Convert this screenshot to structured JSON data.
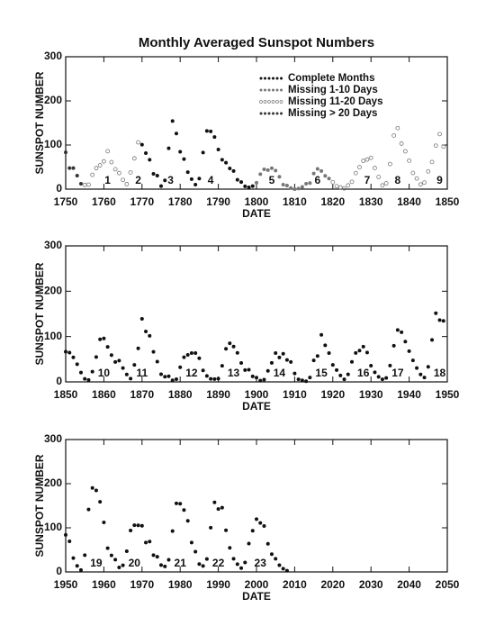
{
  "chart_data": [
    {
      "type": "scatter",
      "title": "Monthly Averaged Sunspot Numbers",
      "xlabel": "DATE",
      "ylabel": "SUNSPOT NUMBER",
      "xlim": [
        1750,
        1850
      ],
      "ylim": [
        0,
        300
      ],
      "xticks": [
        1750,
        1760,
        1770,
        1780,
        1790,
        1800,
        1810,
        1820,
        1830,
        1840,
        1850
      ],
      "yticks": [
        0,
        100,
        200,
        300
      ],
      "legend": "upper right",
      "series": [
        {
          "name": "Complete Months",
          "color": "#111111",
          "marker": "filled",
          "x": [
            1770,
            1771,
            1772,
            1773,
            1774,
            1775,
            1776,
            1777,
            1778,
            1779,
            1780,
            1781,
            1782,
            1783,
            1784,
            1785,
            1786,
            1787,
            1788,
            1789,
            1790,
            1791,
            1792,
            1793,
            1794,
            1795,
            1796,
            1797,
            1798,
            1799
          ],
          "values": [
            100.8,
            81.6,
            66.5,
            34.8,
            30.6,
            7.0,
            19.8,
            92.5,
            154.4,
            125.9,
            84.8,
            68.1,
            38.5,
            22.8,
            10.2,
            24.1,
            82.9,
            132.0,
            130.9,
            118.1,
            89.9,
            66.6,
            60.0,
            46.9,
            41.0,
            21.3,
            16.0,
            6.4,
            4.1,
            6.8
          ]
        },
        {
          "name": "Missing 1-10 Days",
          "color": "#777777",
          "marker": "filled",
          "x": [
            1800,
            1801,
            1802,
            1803,
            1804,
            1805,
            1806,
            1807,
            1808,
            1809,
            1810,
            1811,
            1812,
            1813,
            1814,
            1815,
            1816,
            1817,
            1818,
            1819
          ],
          "values": [
            14.5,
            34.0,
            45.0,
            43.1,
            47.5,
            42.2,
            28.1,
            10.1,
            8.1,
            2.5,
            0.0,
            1.4,
            5.0,
            12.2,
            13.9,
            35.4,
            45.8,
            41.1,
            30.1,
            23.9
          ]
        },
        {
          "name": "Missing 11-20 Days",
          "color": "#777777",
          "marker": "open",
          "x": [
            1755,
            1756,
            1757,
            1758,
            1759,
            1760,
            1761,
            1762,
            1763,
            1764,
            1765,
            1766,
            1767,
            1768,
            1769,
            1820,
            1821,
            1822,
            1823,
            1824,
            1825,
            1826,
            1827,
            1828,
            1829,
            1830,
            1831,
            1832,
            1833,
            1834,
            1835,
            1836,
            1837,
            1838,
            1839,
            1840,
            1841,
            1842,
            1843,
            1844,
            1845,
            1846,
            1847,
            1848,
            1849
          ],
          "values": [
            9.6,
            10.2,
            32.4,
            47.6,
            54.0,
            62.9,
            85.9,
            61.2,
            45.1,
            36.4,
            20.9,
            11.4,
            37.8,
            69.8,
            106.1,
            15.6,
            6.6,
            4.0,
            1.8,
            8.5,
            16.6,
            36.3,
            49.6,
            64.2,
            67.0,
            70.9,
            47.8,
            27.5,
            8.5,
            13.2,
            56.9,
            121.5,
            138.3,
            103.2,
            85.7,
            64.6,
            36.7,
            24.2,
            10.7,
            15.0,
            40.1,
            61.5,
            98.5,
            124.7,
            96.3
          ]
        },
        {
          "name": "Missing > 20 Days",
          "color": "#333333",
          "marker": "filled",
          "x": [
            1750,
            1751,
            1752,
            1753,
            1754
          ],
          "values": [
            83.4,
            47.7,
            47.8,
            30.7,
            12.2
          ]
        }
      ],
      "annotations": [
        {
          "text": "1",
          "x": 1761
        },
        {
          "text": "2",
          "x": 1769
        },
        {
          "text": "3",
          "x": 1777.5
        },
        {
          "text": "4",
          "x": 1788
        },
        {
          "text": "5",
          "x": 1804
        },
        {
          "text": "6",
          "x": 1816
        },
        {
          "text": "7",
          "x": 1829
        },
        {
          "text": "8",
          "x": 1837
        },
        {
          "text": "9",
          "x": 1848
        }
      ]
    },
    {
      "type": "scatter",
      "xlabel": "DATE",
      "ylabel": "SUNSPOT NUMBER",
      "xlim": [
        1850,
        1950
      ],
      "ylim": [
        0,
        300
      ],
      "xticks": [
        1850,
        1860,
        1870,
        1880,
        1890,
        1900,
        1910,
        1920,
        1930,
        1940,
        1950
      ],
      "yticks": [
        0,
        100,
        200,
        300
      ],
      "series": [
        {
          "color": "#111111",
          "marker": "filled",
          "x": [
            1850,
            1851,
            1852,
            1853,
            1854,
            1855,
            1856,
            1857,
            1858,
            1859,
            1860,
            1861,
            1862,
            1863,
            1864,
            1865,
            1866,
            1867,
            1868,
            1869,
            1870,
            1871,
            1872,
            1873,
            1874,
            1875,
            1876,
            1877,
            1878,
            1879,
            1880,
            1881,
            1882,
            1883,
            1884,
            1885,
            1886,
            1887,
            1888,
            1889,
            1890,
            1891,
            1892,
            1893,
            1894,
            1895,
            1896,
            1897,
            1898,
            1899,
            1900,
            1901,
            1902,
            1903,
            1904,
            1905,
            1906,
            1907,
            1908,
            1909,
            1910,
            1911,
            1912,
            1913,
            1914,
            1915,
            1916,
            1917,
            1918,
            1919,
            1920,
            1921,
            1922,
            1923,
            1924,
            1925,
            1926,
            1927,
            1928,
            1929,
            1930,
            1931,
            1932,
            1933,
            1934,
            1935,
            1936,
            1937,
            1938,
            1939,
            1940,
            1941,
            1942,
            1943,
            1944,
            1945,
            1946,
            1947,
            1948,
            1949
          ],
          "values": [
            66.6,
            64.5,
            54.1,
            39.0,
            20.6,
            6.7,
            4.3,
            22.7,
            54.8,
            93.8,
            95.8,
            77.2,
            59.1,
            44.0,
            47.0,
            30.5,
            16.3,
            7.3,
            37.6,
            74.0,
            139.0,
            111.2,
            101.6,
            66.2,
            44.7,
            17.0,
            11.3,
            12.4,
            3.4,
            6.0,
            32.3,
            54.3,
            59.7,
            63.7,
            63.5,
            52.2,
            25.4,
            13.1,
            6.8,
            6.3,
            7.1,
            35.6,
            73.0,
            85.1,
            78.0,
            64.0,
            41.8,
            26.2,
            26.7,
            12.1,
            9.5,
            2.7,
            5.0,
            24.4,
            42.0,
            63.5,
            53.8,
            62.0,
            48.5,
            43.9,
            18.6,
            5.7,
            3.6,
            1.4,
            9.6,
            47.4,
            57.1,
            103.9,
            80.6,
            63.6,
            37.6,
            26.1,
            14.2,
            5.8,
            16.7,
            44.3,
            63.9,
            69.0,
            77.8,
            64.9,
            35.7,
            21.2,
            11.1,
            5.7,
            8.7,
            36.1,
            79.7,
            114.4,
            109.6,
            88.8,
            67.8,
            47.5,
            30.6,
            16.3,
            9.6,
            33.2,
            92.6,
            151.6,
            136.3,
            134.7
          ]
        }
      ],
      "annotations": [
        {
          "text": "10",
          "x": 1860
        },
        {
          "text": "11",
          "x": 1870
        },
        {
          "text": "12",
          "x": 1883
        },
        {
          "text": "13",
          "x": 1894
        },
        {
          "text": "14",
          "x": 1906
        },
        {
          "text": "15",
          "x": 1917
        },
        {
          "text": "16",
          "x": 1928
        },
        {
          "text": "17",
          "x": 1937
        },
        {
          "text": "18",
          "x": 1948
        }
      ]
    },
    {
      "type": "scatter",
      "xlabel": "DATE",
      "ylabel": "SUNSPOT NUMBER",
      "xlim": [
        1950,
        2050
      ],
      "ylim": [
        0,
        300
      ],
      "xticks": [
        1950,
        1960,
        1970,
        1980,
        1990,
        2000,
        2010,
        2020,
        2030,
        2040,
        2050
      ],
      "yticks": [
        0,
        100,
        200,
        300
      ],
      "series": [
        {
          "color": "#111111",
          "marker": "filled",
          "x": [
            1950,
            1951,
            1952,
            1953,
            1954,
            1955,
            1956,
            1957,
            1958,
            1959,
            1960,
            1961,
            1962,
            1963,
            1964,
            1965,
            1966,
            1967,
            1968,
            1969,
            1970,
            1971,
            1972,
            1973,
            1974,
            1975,
            1976,
            1977,
            1978,
            1979,
            1980,
            1981,
            1982,
            1983,
            1984,
            1985,
            1986,
            1987,
            1988,
            1989,
            1990,
            1991,
            1992,
            1993,
            1994,
            1995,
            1996,
            1997,
            1998,
            1999,
            2000,
            2001,
            2002,
            2003,
            2004,
            2005,
            2006,
            2007,
            2008
          ],
          "values": [
            83.9,
            69.4,
            31.5,
            13.9,
            4.4,
            38.0,
            141.7,
            190.2,
            184.8,
            159.0,
            112.3,
            53.9,
            37.6,
            27.9,
            10.2,
            15.1,
            47.0,
            93.8,
            105.9,
            105.5,
            104.5,
            66.6,
            68.9,
            38.0,
            34.5,
            15.5,
            12.6,
            27.5,
            92.5,
            155.4,
            154.6,
            140.4,
            115.9,
            66.6,
            45.9,
            17.9,
            13.4,
            29.4,
            100.2,
            157.6,
            142.6,
            145.7,
            94.3,
            54.6,
            29.9,
            17.5,
            8.6,
            21.5,
            64.3,
            93.3,
            119.6,
            111.0,
            104.0,
            63.7,
            40.4,
            29.8,
            15.2,
            7.5,
            2.9
          ]
        }
      ],
      "annotations": [
        {
          "text": "19",
          "x": 1958
        },
        {
          "text": "20",
          "x": 1968
        },
        {
          "text": "21",
          "x": 1980
        },
        {
          "text": "22",
          "x": 1990
        },
        {
          "text": "23",
          "x": 2001
        }
      ]
    }
  ]
}
